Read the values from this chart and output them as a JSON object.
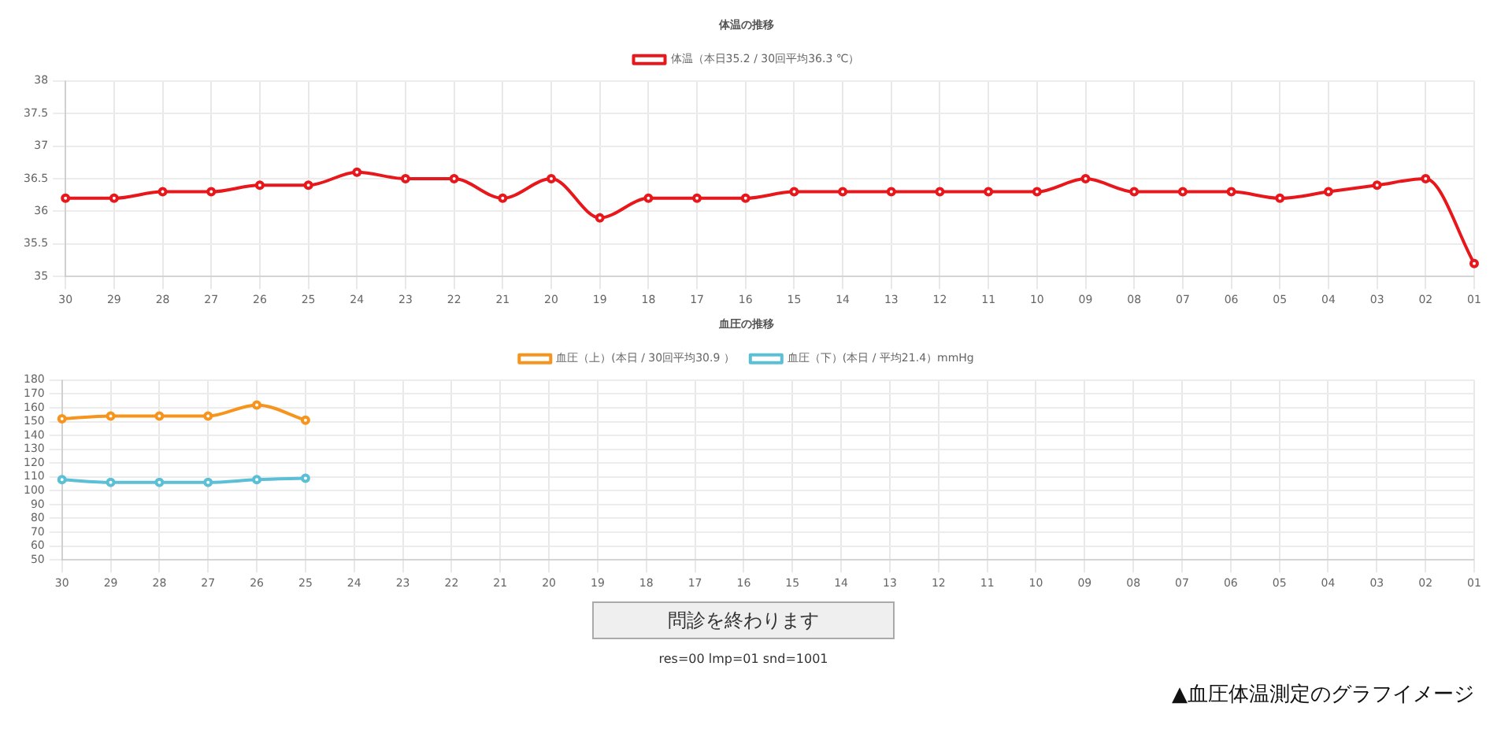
{
  "chart_data": [
    {
      "type": "line",
      "title": "体温の推移",
      "categories": [
        "30",
        "29",
        "28",
        "27",
        "26",
        "25",
        "24",
        "23",
        "22",
        "21",
        "20",
        "19",
        "18",
        "17",
        "16",
        "15",
        "14",
        "13",
        "12",
        "11",
        "10",
        "09",
        "08",
        "07",
        "06",
        "05",
        "04",
        "03",
        "02",
        "01"
      ],
      "series": [
        {
          "name": "体温（本日35.2 / 30回平均36.3 ℃）",
          "color": "#e8171b",
          "values": [
            36.2,
            36.2,
            36.3,
            36.3,
            36.4,
            36.4,
            36.6,
            36.5,
            36.5,
            36.2,
            36.5,
            35.9,
            36.2,
            36.2,
            36.2,
            36.3,
            36.3,
            36.3,
            36.3,
            36.3,
            36.3,
            36.5,
            36.3,
            36.3,
            36.3,
            36.2,
            36.3,
            36.4,
            36.5,
            35.2
          ]
        }
      ],
      "ylim": [
        35,
        38
      ],
      "yticks": [
        35,
        35.5,
        36,
        36.5,
        37,
        37.5,
        38
      ],
      "grid": true,
      "legend": "top",
      "marker": "circle",
      "line_style": "solid"
    },
    {
      "type": "line",
      "title": "血圧の推移",
      "categories": [
        "30",
        "29",
        "28",
        "27",
        "26",
        "25",
        "24",
        "23",
        "22",
        "21",
        "20",
        "19",
        "18",
        "17",
        "16",
        "15",
        "14",
        "13",
        "12",
        "11",
        "10",
        "09",
        "08",
        "07",
        "06",
        "05",
        "04",
        "03",
        "02",
        "01"
      ],
      "series": [
        {
          "name": "血圧（上）(本日 / 30回平均30.9 ）",
          "color": "#f7941d",
          "values": [
            152,
            154,
            154,
            154,
            162,
            151,
            null,
            null,
            null,
            null,
            null,
            null,
            null,
            null,
            null,
            null,
            null,
            null,
            null,
            null,
            null,
            null,
            null,
            null,
            null,
            null,
            null,
            null,
            null,
            null
          ]
        },
        {
          "name": "血圧（下）(本日 / 平均21.4）mmHg",
          "color": "#5bc0d6",
          "values": [
            108,
            106,
            106,
            106,
            108,
            109,
            null,
            null,
            null,
            null,
            null,
            null,
            null,
            null,
            null,
            null,
            null,
            null,
            null,
            null,
            null,
            null,
            null,
            null,
            null,
            null,
            null,
            null,
            null,
            null
          ]
        }
      ],
      "ylim": [
        50,
        180
      ],
      "yticks": [
        50,
        60,
        70,
        80,
        90,
        100,
        110,
        120,
        130,
        140,
        150,
        160,
        170,
        180
      ],
      "grid": true,
      "legend": "top",
      "marker": "circle",
      "line_style": "solid",
      "annotations": [
        "問診を終わります",
        "res=00 lmp=01 snd=1001",
        "▲血圧体温測定のグラフイメージ"
      ]
    }
  ]
}
